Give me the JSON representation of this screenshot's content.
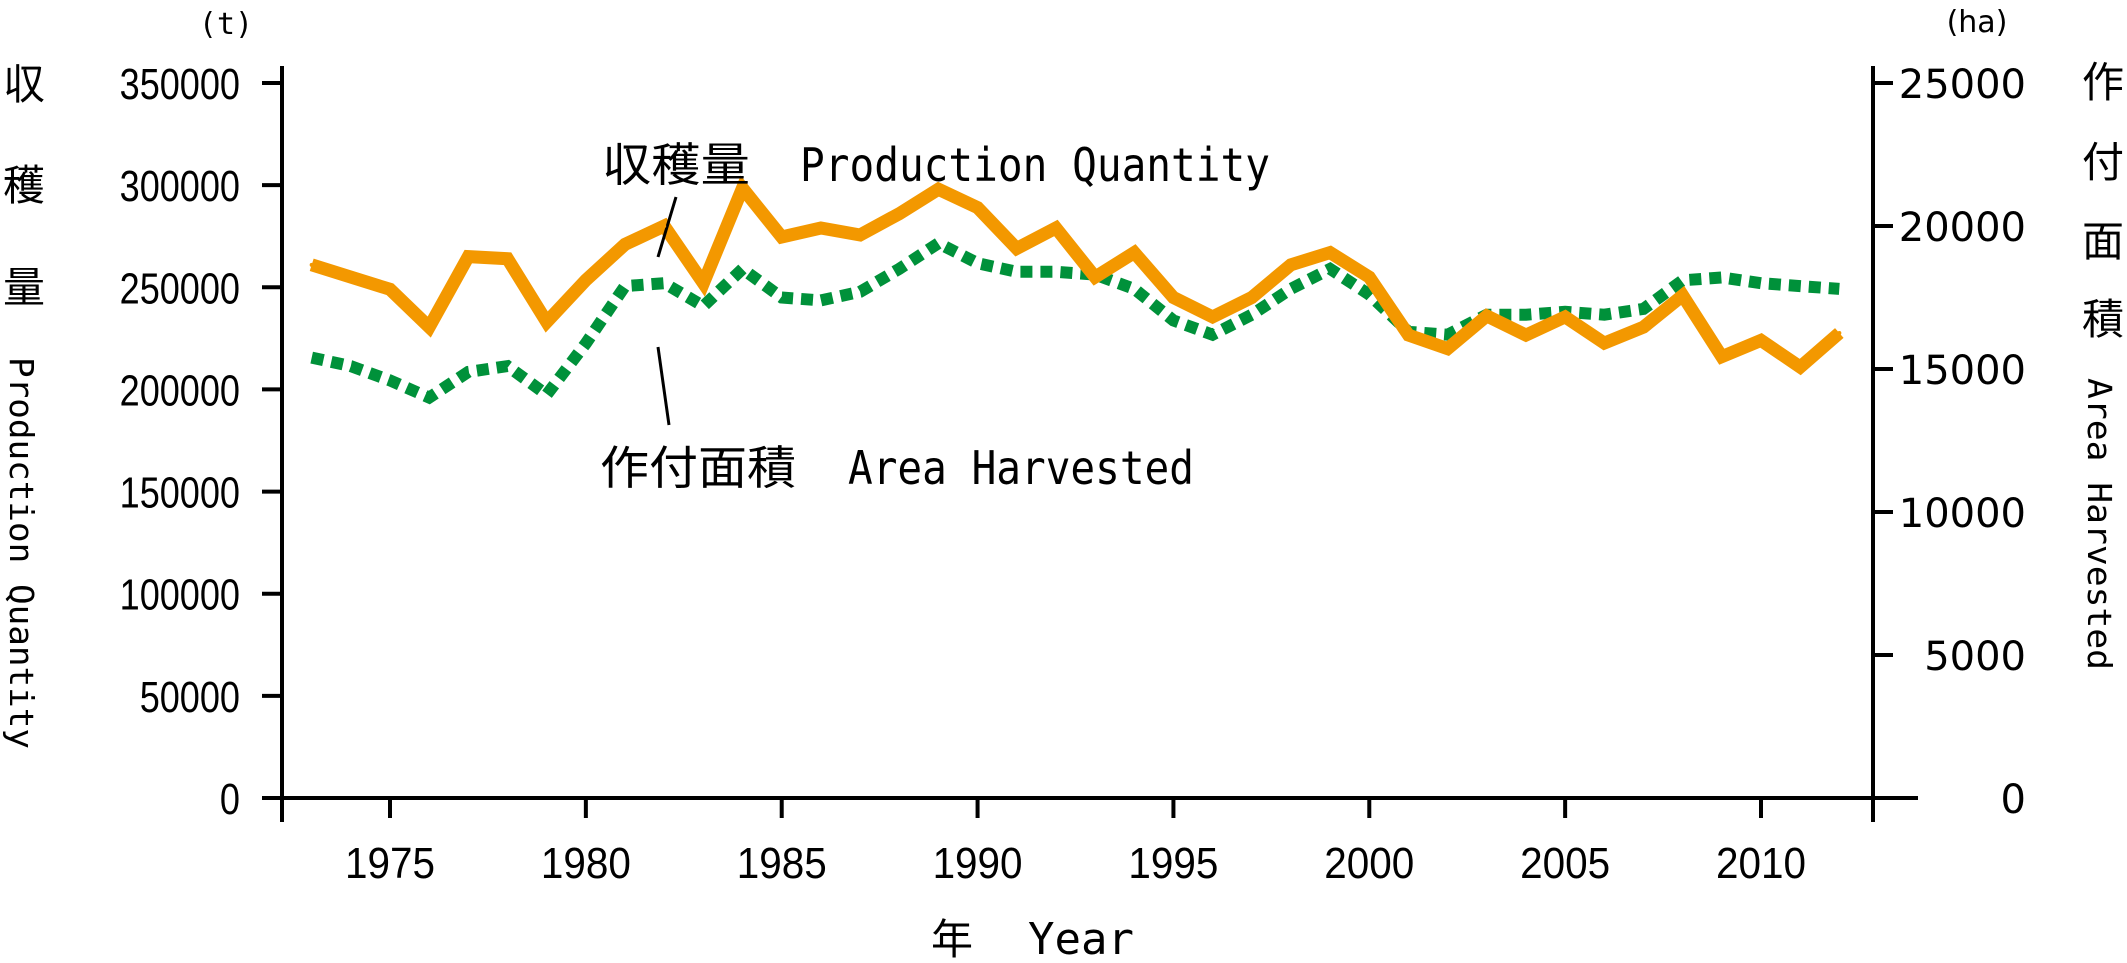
{
  "chart_data": {
    "type": "line",
    "title": "",
    "xlabel": "年　Year",
    "xlabel_jp": "年",
    "xlabel_en": "Year",
    "x": [
      1973,
      1974,
      1975,
      1976,
      1977,
      1978,
      1979,
      1980,
      1981,
      1982,
      1983,
      1984,
      1985,
      1986,
      1987,
      1988,
      1989,
      1990,
      1991,
      1992,
      1993,
      1994,
      1995,
      1996,
      1997,
      1998,
      1999,
      2000,
      2001,
      2002,
      2003,
      2004,
      2005,
      2006,
      2007,
      2008,
      2009,
      2010,
      2011,
      2012
    ],
    "xlim": [
      1972,
      2014
    ],
    "xticks": [
      1975,
      1980,
      1985,
      1990,
      1995,
      2000,
      2005,
      2010
    ],
    "xtick_labels": [
      "1975",
      "1980",
      "1985",
      "1990",
      "1995",
      "2000",
      "2005",
      "2010"
    ],
    "y_left": {
      "unit": "(t)",
      "label_jp": [
        "収",
        "穫",
        "量"
      ],
      "label_en": "Production Quantity",
      "ylim": [
        0,
        350000
      ],
      "ticks": [
        0,
        50000,
        100000,
        150000,
        200000,
        250000,
        300000,
        350000
      ],
      "tick_labels": [
        "0",
        "50000",
        "100000",
        "150000",
        "200000",
        "250000",
        "300000",
        "350000"
      ]
    },
    "y_right": {
      "unit": "(ha)",
      "label_jp": [
        "作",
        "付",
        "面",
        "積"
      ],
      "label_en": "Area Harvested",
      "ylim": [
        0,
        25000
      ],
      "ticks": [
        0,
        5000,
        10000,
        15000,
        20000,
        25000
      ],
      "tick_labels": [
        "0",
        "5000",
        "10000",
        "15000",
        "20000",
        "25000"
      ]
    },
    "series": [
      {
        "name": "収穫量　Production Quantity",
        "label_jp": "収穫量",
        "label_en": "Production Quantity",
        "axis": "left",
        "style": "solid",
        "color": "#F39800",
        "values": [
          261000,
          255000,
          249000,
          230500,
          265000,
          264000,
          233000,
          253500,
          271000,
          280000,
          252000,
          298500,
          274600,
          279000,
          275600,
          286000,
          298000,
          289000,
          269000,
          279000,
          255000,
          267000,
          245000,
          235500,
          245000,
          261000,
          267000,
          255000,
          226600,
          220000,
          236000,
          226600,
          235500,
          222700,
          230500,
          246000,
          216000,
          224000,
          211000,
          227600
        ]
      },
      {
        "name": "作付面積　Area Harvested",
        "label_jp": "作付面積",
        "label_en": "Area Harvested",
        "axis": "right",
        "style": "dotted",
        "color": "#00913A",
        "values": [
          15400,
          15100,
          14600,
          14000,
          14900,
          15100,
          14100,
          15900,
          17900,
          18000,
          17200,
          18500,
          17500,
          17400,
          17700,
          18500,
          19400,
          18700,
          18400,
          18400,
          18300,
          17800,
          16700,
          16200,
          16900,
          17800,
          18500,
          17600,
          16300,
          16200,
          16900,
          16900,
          17000,
          16900,
          17100,
          18100,
          18200,
          18000,
          17900,
          17800
        ]
      }
    ]
  }
}
